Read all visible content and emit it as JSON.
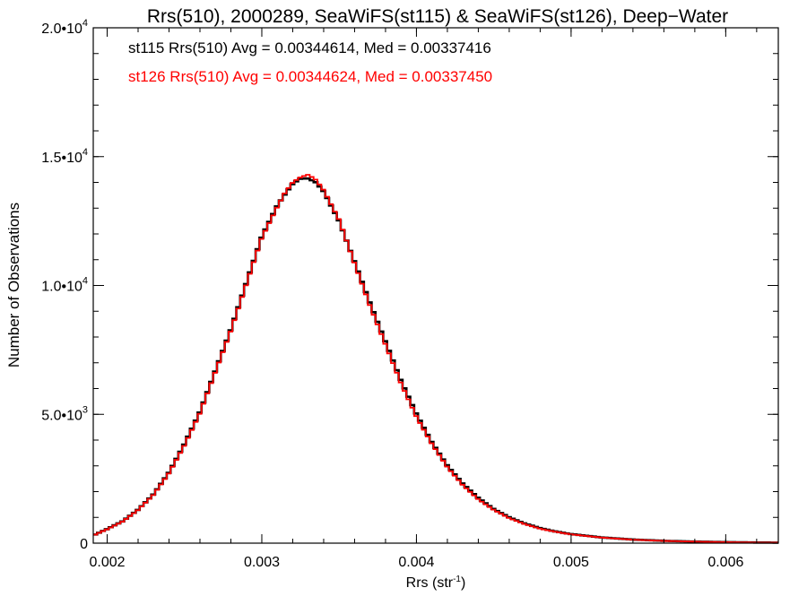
{
  "chart_data": {
    "type": "line",
    "title": "Rrs(510), 2000289, SeaWiFS(st115) & SeaWiFS(st126), Deep−Water",
    "xlabel": "Rrs (str",
    "xlabel_sup": "-1",
    "xlabel_suffix": ")",
    "ylabel": "Number of Observations",
    "xlim": [
      0.00191,
      0.00634
    ],
    "ylim": [
      0,
      20000
    ],
    "grid": false,
    "x_ticks": [
      {
        "value": 0.002,
        "label": "0.002"
      },
      {
        "value": 0.003,
        "label": "0.003"
      },
      {
        "value": 0.004,
        "label": "0.004"
      },
      {
        "value": 0.005,
        "label": "0.005"
      },
      {
        "value": 0.006,
        "label": "0.006"
      }
    ],
    "y_ticks": [
      {
        "value": 0,
        "label": "0",
        "sup": ""
      },
      {
        "value": 5000,
        "label": "5.0•10",
        "sup": "3"
      },
      {
        "value": 10000,
        "label": "1.0•10",
        "sup": "4"
      },
      {
        "value": 15000,
        "label": "1.5•10",
        "sup": "4"
      },
      {
        "value": 20000,
        "label": "2.0•10",
        "sup": "4"
      }
    ],
    "annotations": [
      {
        "text": "st115 Rrs(510) Avg = 0.00344614, Med = 0.00337416",
        "color": "#000000"
      },
      {
        "text": "st126 Rrs(510) Avg = 0.00344624, Med = 0.00337450",
        "color": "#ff0000"
      }
    ],
    "series": [
      {
        "name": "st115",
        "color": "#000000",
        "x": [
          0.00191,
          0.002,
          0.0021,
          0.0022,
          0.0023,
          0.0024,
          0.0025,
          0.0026,
          0.0027,
          0.0028,
          0.0029,
          0.003,
          0.0031,
          0.00315,
          0.0032,
          0.00325,
          0.0033,
          0.00335,
          0.0034,
          0.0035,
          0.0036,
          0.0037,
          0.0038,
          0.0039,
          0.004,
          0.0041,
          0.0042,
          0.0043,
          0.0044,
          0.0045,
          0.0046,
          0.0047,
          0.0048,
          0.0049,
          0.005,
          0.0052,
          0.0054,
          0.0056,
          0.0058,
          0.006,
          0.0062,
          0.00634
        ],
        "y": [
          300,
          550,
          850,
          1300,
          1900,
          2750,
          3850,
          5100,
          6700,
          8300,
          10100,
          11900,
          13100,
          13550,
          13950,
          14150,
          14150,
          14000,
          13650,
          12500,
          10900,
          9300,
          7800,
          6300,
          5000,
          3900,
          3000,
          2300,
          1750,
          1320,
          1000,
          760,
          580,
          450,
          350,
          220,
          140,
          90,
          60,
          40,
          25,
          20
        ]
      },
      {
        "name": "st126",
        "color": "#ff0000",
        "x": [
          0.00191,
          0.002,
          0.0021,
          0.0022,
          0.0023,
          0.0024,
          0.0025,
          0.0026,
          0.0027,
          0.0028,
          0.0029,
          0.003,
          0.0031,
          0.00315,
          0.0032,
          0.00325,
          0.0033,
          0.00335,
          0.0034,
          0.0035,
          0.0036,
          0.0037,
          0.0038,
          0.0039,
          0.004,
          0.0041,
          0.0042,
          0.0043,
          0.0044,
          0.0045,
          0.0046,
          0.0047,
          0.0048,
          0.0049,
          0.005,
          0.0052,
          0.0054,
          0.0056,
          0.0058,
          0.006,
          0.0062,
          0.00634
        ],
        "y": [
          300,
          540,
          840,
          1290,
          1880,
          2720,
          3800,
          5050,
          6650,
          8250,
          10050,
          11850,
          13050,
          13600,
          14000,
          14200,
          14300,
          14100,
          13700,
          12550,
          10850,
          9200,
          7700,
          6200,
          4900,
          3850,
          2950,
          2250,
          1700,
          1290,
          970,
          740,
          560,
          440,
          340,
          215,
          135,
          88,
          58,
          38,
          24,
          18
        ]
      }
    ]
  }
}
